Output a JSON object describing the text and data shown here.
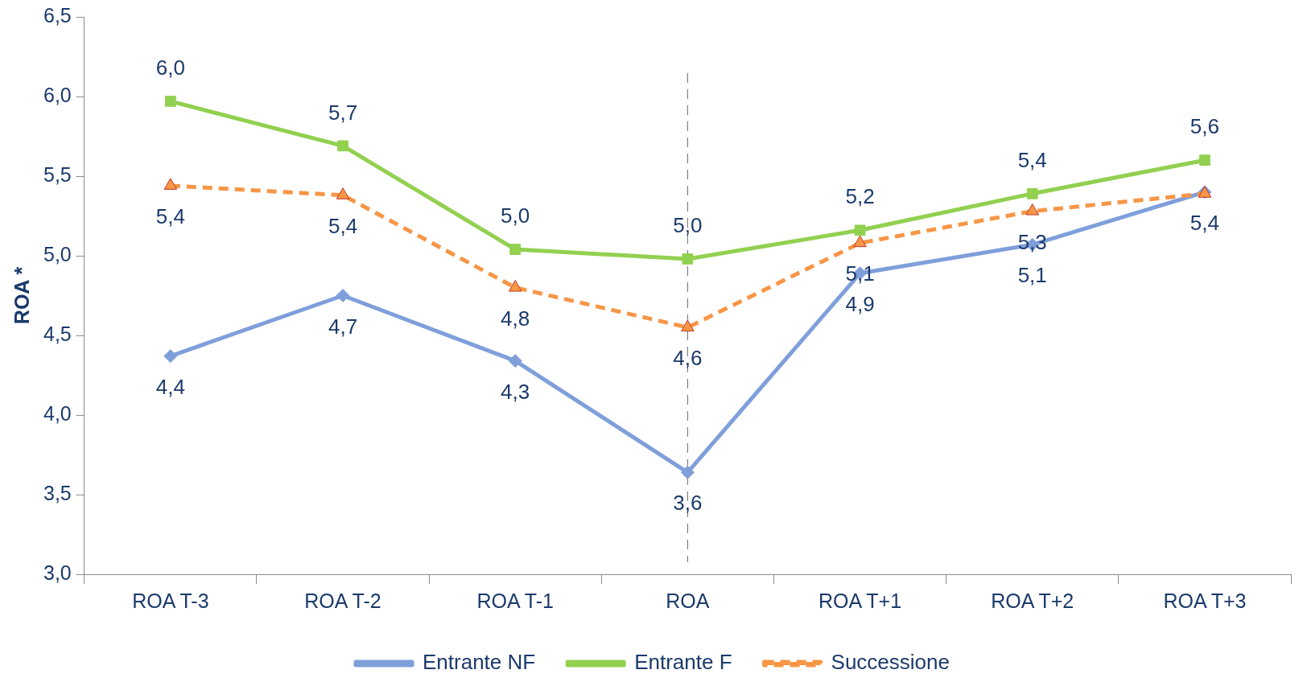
{
  "chart_data": {
    "type": "line",
    "ylabel": "ROA *",
    "categories": [
      "ROA T-3",
      "ROA T-2",
      "ROA T-1",
      "ROA",
      "ROA T+1",
      "ROA T+2",
      "ROA T+3"
    ],
    "series": [
      {
        "name": "Entrante NF",
        "color": "#7f9fdb",
        "marker": "diamond",
        "line_style": "solid",
        "values": [
          4.37,
          4.75,
          4.34,
          3.64,
          4.89,
          5.07,
          5.4
        ],
        "value_labels": [
          "4,4",
          "4,7",
          "4,3",
          "3,6",
          "4,9",
          "5,1",
          "5,4"
        ]
      },
      {
        "name": "Entrante F",
        "color": "#92d050",
        "marker": "square",
        "line_style": "solid",
        "values": [
          5.97,
          5.69,
          5.04,
          4.98,
          5.16,
          5.39,
          5.6
        ],
        "value_labels": [
          "6,0",
          "5,7",
          "5,0",
          "5,0",
          "5,2",
          "5,4",
          "5,6"
        ]
      },
      {
        "name": "Successione",
        "color": "#f79646",
        "marker": "triangle",
        "line_style": "dashed",
        "values": [
          5.44,
          5.38,
          4.8,
          4.55,
          5.08,
          5.28,
          5.39
        ],
        "value_labels": [
          "5,4",
          "5,4",
          "4,8",
          "4,6",
          "5,1",
          "5,3",
          null
        ]
      }
    ],
    "ylim": [
      3,
      6.5
    ],
    "yticks": [
      {
        "value": 3,
        "label": "3,0"
      },
      {
        "value": 3.5,
        "label": "3,5"
      },
      {
        "value": 4,
        "label": "4,0"
      },
      {
        "value": 4.5,
        "label": "4,5"
      },
      {
        "value": 5,
        "label": "5,0"
      },
      {
        "value": 5.5,
        "label": "5,5"
      },
      {
        "value": 6,
        "label": "6,0"
      },
      {
        "value": 6.5,
        "label": "6,5"
      }
    ],
    "ref_lines": [
      {
        "axis": "x",
        "value": "ROA",
        "color": "#808080",
        "line_style": "dashed"
      }
    ],
    "grid": false,
    "legend": "bottom"
  }
}
